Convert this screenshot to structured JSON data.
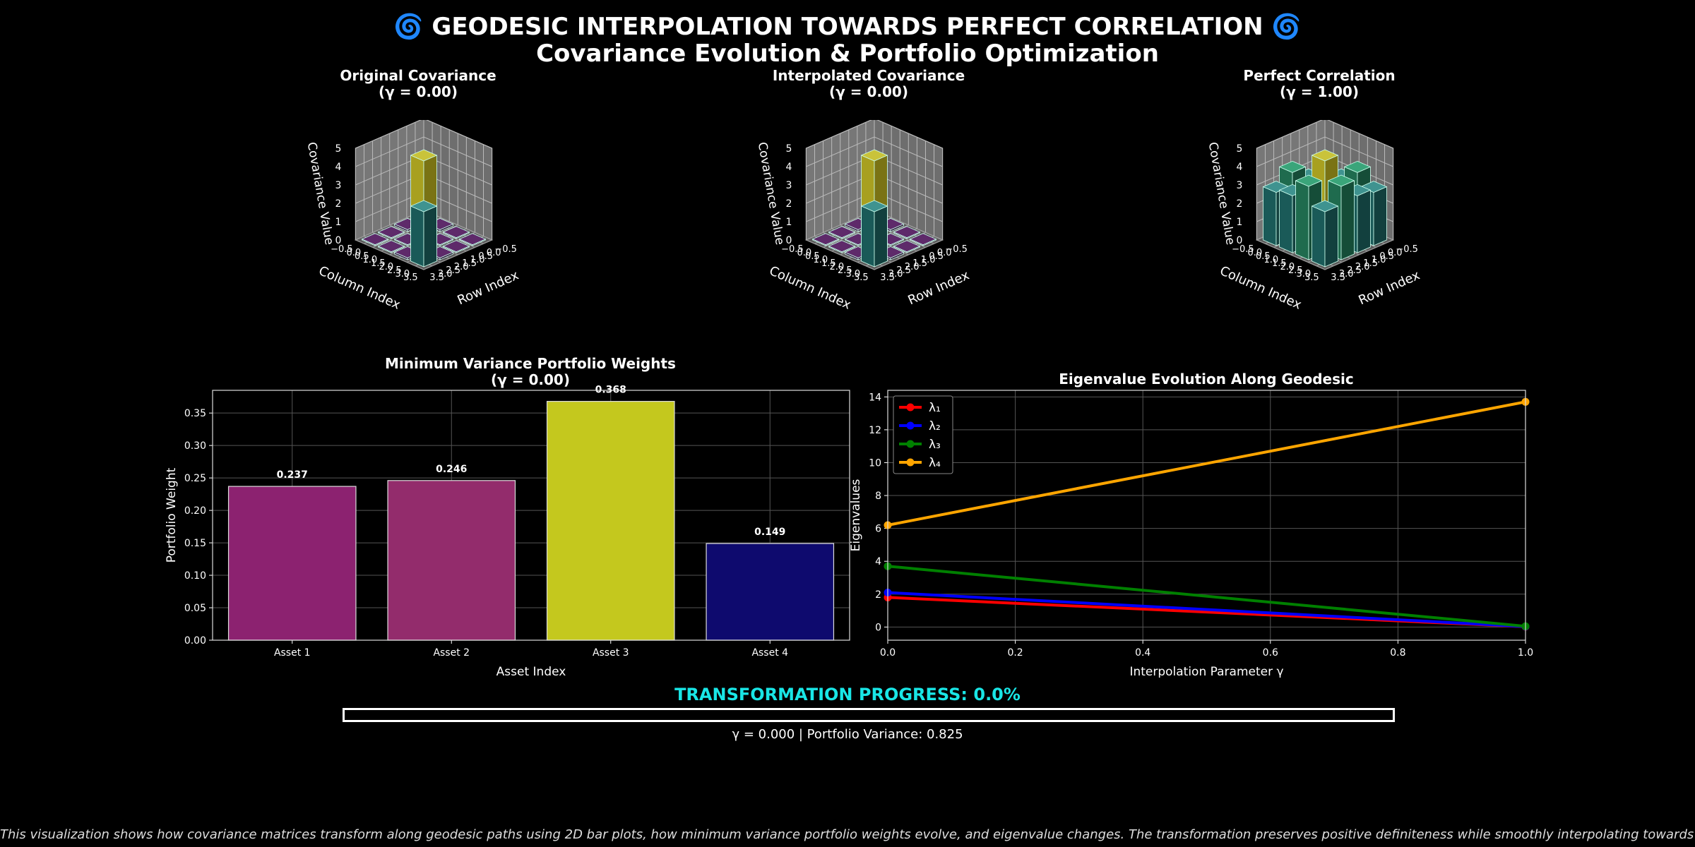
{
  "title_line1": "🌀 GEODESIC INTERPOLATION TOWARDS PERFECT CORRELATION 🌀",
  "title_line2": "Covariance Evolution & Portfolio Optimization",
  "chart_data": [
    {
      "type": "bar3d",
      "title": "Original Covariance\n(γ = 0.00)",
      "xlabel": "Column Index",
      "ylabel": "Row Index",
      "zlabel": "Covariance Value",
      "zlim": [
        0,
        5
      ],
      "z_ticks": [
        "0",
        "1",
        "2",
        "3",
        "4",
        "5"
      ],
      "axis_ticks": [
        "−0.5",
        "0.0",
        "0.5",
        "1.0",
        "1.5",
        "2.0",
        "2.5",
        "3.0",
        "3.5"
      ],
      "matrix": [
        [
          0.8,
          0.1,
          0.05,
          0.05
        ],
        [
          0.1,
          0.5,
          0.05,
          0.05
        ],
        [
          0.05,
          0.05,
          5.0,
          0.1
        ],
        [
          0.05,
          0.05,
          0.1,
          3.0
        ]
      ]
    },
    {
      "type": "bar3d",
      "title": "Interpolated Covariance\n(γ = 0.00)",
      "xlabel": "Column Index",
      "ylabel": "Row Index",
      "zlabel": "Covariance Value",
      "zlim": [
        0,
        5
      ],
      "z_ticks": [
        "0",
        "1",
        "2",
        "3",
        "4",
        "5"
      ],
      "axis_ticks": [
        "−0.5",
        "0.0",
        "0.5",
        "1.0",
        "1.5",
        "2.0",
        "2.5",
        "3.0",
        "3.5"
      ],
      "matrix": [
        [
          0.8,
          0.1,
          0.05,
          0.05
        ],
        [
          0.1,
          0.5,
          0.05,
          0.05
        ],
        [
          0.05,
          0.05,
          5.0,
          0.1
        ],
        [
          0.05,
          0.05,
          0.1,
          3.0
        ]
      ]
    },
    {
      "type": "bar3d",
      "title": "Perfect Correlation\n(γ = 1.00)",
      "xlabel": "Column Index",
      "ylabel": "Row Index",
      "zlabel": "Covariance Value",
      "zlim": [
        0,
        5
      ],
      "z_ticks": [
        "0",
        "1",
        "2",
        "3",
        "4",
        "5"
      ],
      "axis_ticks": [
        "−0.5",
        "0.0",
        "0.5",
        "1.0",
        "1.5",
        "2.0",
        "2.5",
        "3.0",
        "3.5"
      ],
      "matrix": [
        [
          2.5,
          2.8,
          3.6,
          2.9
        ],
        [
          2.8,
          2.4,
          3.2,
          3.1
        ],
        [
          3.6,
          3.2,
          5.0,
          4.0
        ],
        [
          2.9,
          3.1,
          4.0,
          3.0
        ]
      ]
    },
    {
      "type": "bar",
      "title": "Minimum Variance Portfolio Weights\n(γ = 0.00)",
      "categories": [
        "Asset 1",
        "Asset 2",
        "Asset 3",
        "Asset 4"
      ],
      "values": [
        0.237,
        0.246,
        0.368,
        0.149
      ],
      "labels": [
        "0.237",
        "0.246",
        "0.368",
        "0.149"
      ],
      "colors": [
        "#8c2270",
        "#932c6c",
        "#c4c81e",
        "#0e0a6e"
      ],
      "xlabel": "Asset Index",
      "ylabel": "Portfolio Weight",
      "ylim": [
        0,
        0.385
      ],
      "yticks": [
        0,
        0.05,
        0.1,
        0.15,
        0.2,
        0.25,
        0.3,
        0.35
      ],
      "ytick_labels": [
        "0.00",
        "0.05",
        "0.10",
        "0.15",
        "0.20",
        "0.25",
        "0.30",
        "0.35"
      ],
      "grid": true
    },
    {
      "type": "line",
      "title": "Eigenvalue Evolution Along Geodesic",
      "xlabel": "Interpolation Parameter γ",
      "ylabel": "Eigenvalues",
      "xlim": [
        0,
        1
      ],
      "ylim": [
        -0.8,
        14.4
      ],
      "xticks": [
        0,
        0.2,
        0.4,
        0.6,
        0.8,
        1.0
      ],
      "xtick_labels": [
        "0.0",
        "0.2",
        "0.4",
        "0.6",
        "0.8",
        "1.0"
      ],
      "yticks": [
        0,
        2,
        4,
        6,
        8,
        10,
        12,
        14
      ],
      "ytick_labels": [
        "0",
        "2",
        "4",
        "6",
        "8",
        "10",
        "12",
        "14"
      ],
      "legend": "top-left",
      "grid": true,
      "series": [
        {
          "name": "λ₁",
          "color": "#ff0000",
          "x": [
            0,
            1
          ],
          "y": [
            1.8,
            0.02
          ]
        },
        {
          "name": "λ₂",
          "color": "#0000ff",
          "x": [
            0,
            1
          ],
          "y": [
            2.1,
            0.03
          ]
        },
        {
          "name": "λ₃",
          "color": "#008000",
          "x": [
            0,
            1
          ],
          "y": [
            3.7,
            0.05
          ]
        },
        {
          "name": "λ₄",
          "color": "#ffa500",
          "x": [
            0,
            1
          ],
          "y": [
            6.2,
            13.7
          ]
        }
      ]
    }
  ],
  "progress": {
    "label": "TRANSFORMATION PROGRESS: 0.0%",
    "fraction": 0.0
  },
  "status_text": "γ = 0.000 | Portfolio Variance: 0.825",
  "footer_text": "This visualization shows how covariance matrices transform along geodesic paths using 2D bar plots, how minimum variance portfolio weights evolve, and eigenvalue changes. The transformation preserves positive definiteness while smoothly interpolating towards perfect correlation structure."
}
